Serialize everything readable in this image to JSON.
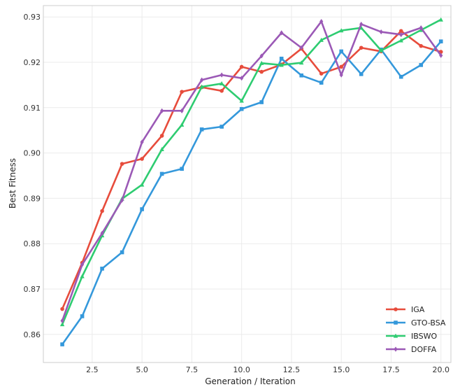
{
  "chart_data": {
    "type": "line",
    "title": "",
    "xlabel": "Generation / Iteration",
    "ylabel": "Best Fitness",
    "xlim": [
      0.05,
      20.5
    ],
    "ylim": [
      0.8538,
      0.9325
    ],
    "x_ticks": [
      2.5,
      5.0,
      7.5,
      10.0,
      12.5,
      15.0,
      17.5,
      20.0
    ],
    "x_tick_labels": [
      "2.5",
      "5.0",
      "7.5",
      "10.0",
      "12.5",
      "15.0",
      "17.5",
      "20.0"
    ],
    "y_ticks": [
      0.86,
      0.87,
      0.88,
      0.89,
      0.9,
      0.91,
      0.92,
      0.93
    ],
    "y_tick_labels": [
      "0.86",
      "0.87",
      "0.88",
      "0.89",
      "0.90",
      "0.91",
      "0.92",
      "0.93"
    ],
    "grid": true,
    "legend_position": "bottom-right",
    "x": [
      1,
      2,
      3,
      4,
      5,
      6,
      7,
      8,
      9,
      10,
      11,
      12,
      13,
      14,
      15,
      16,
      17,
      18,
      19,
      20
    ],
    "series": [
      {
        "name": "IGA",
        "color": "#e74c3c",
        "marker": "circle",
        "values": [
          0.8656,
          0.8758,
          0.8872,
          0.8976,
          0.8987,
          0.9038,
          0.9135,
          0.9145,
          0.9137,
          0.919,
          0.9179,
          0.9195,
          0.923,
          0.9175,
          0.919,
          0.9232,
          0.9224,
          0.9269,
          0.9236,
          0.9223
        ]
      },
      {
        "name": "GTO-BSA",
        "color": "#3498db",
        "marker": "square",
        "values": [
          0.8578,
          0.864,
          0.8745,
          0.8781,
          0.8876,
          0.8954,
          0.8965,
          0.9052,
          0.9058,
          0.9097,
          0.9112,
          0.9208,
          0.9171,
          0.9155,
          0.9224,
          0.9174,
          0.9228,
          0.9168,
          0.9194,
          0.9246
        ]
      },
      {
        "name": "IBSWO",
        "color": "#2ecc71",
        "marker": "triangle",
        "values": [
          0.8622,
          0.8728,
          0.8818,
          0.8899,
          0.893,
          0.9008,
          0.9062,
          0.9146,
          0.9153,
          0.9115,
          0.9198,
          0.9194,
          0.9199,
          0.9249,
          0.927,
          0.9276,
          0.9226,
          0.9248,
          0.9271,
          0.9294
        ]
      },
      {
        "name": "DOFFA",
        "color": "#9b59b6",
        "marker": "diamond",
        "values": [
          0.863,
          0.8754,
          0.8823,
          0.8896,
          0.9024,
          0.9093,
          0.9093,
          0.9161,
          0.9172,
          0.9165,
          0.9214,
          0.9265,
          0.9232,
          0.929,
          0.9172,
          0.9284,
          0.9267,
          0.9261,
          0.9276,
          0.9215
        ]
      }
    ]
  }
}
